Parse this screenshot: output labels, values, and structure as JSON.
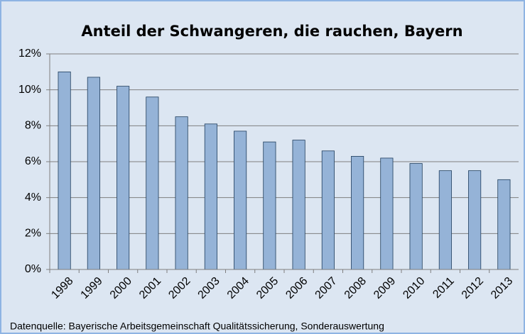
{
  "chart_data": {
    "type": "bar",
    "title": "Anteil der Schwangeren, die rauchen, Bayern",
    "categories": [
      "1998",
      "1999",
      "2000",
      "2001",
      "2002",
      "2003",
      "2004",
      "2005",
      "2006",
      "2007",
      "2008",
      "2009",
      "2010",
      "2011",
      "2012",
      "2013"
    ],
    "values": [
      11.0,
      10.7,
      10.2,
      9.6,
      8.5,
      8.1,
      7.7,
      7.1,
      7.2,
      6.6,
      6.3,
      6.2,
      5.9,
      5.5,
      5.5,
      5.0
    ],
    "color": "#95b3d7",
    "ylim": [
      0,
      12
    ],
    "yticks": [
      {
        "value": 0,
        "label": "0%"
      },
      {
        "value": 2,
        "label": "2%"
      },
      {
        "value": 4,
        "label": "4%"
      },
      {
        "value": 6,
        "label": "6%"
      },
      {
        "value": 8,
        "label": "8%"
      },
      {
        "value": 10,
        "label": "10%"
      },
      {
        "value": 12,
        "label": "12%"
      }
    ],
    "grid": true,
    "source": "Datenquelle: Bayerische Arbeitsgemeinschaft Qualitätssicherung, Sonderauswertung"
  }
}
